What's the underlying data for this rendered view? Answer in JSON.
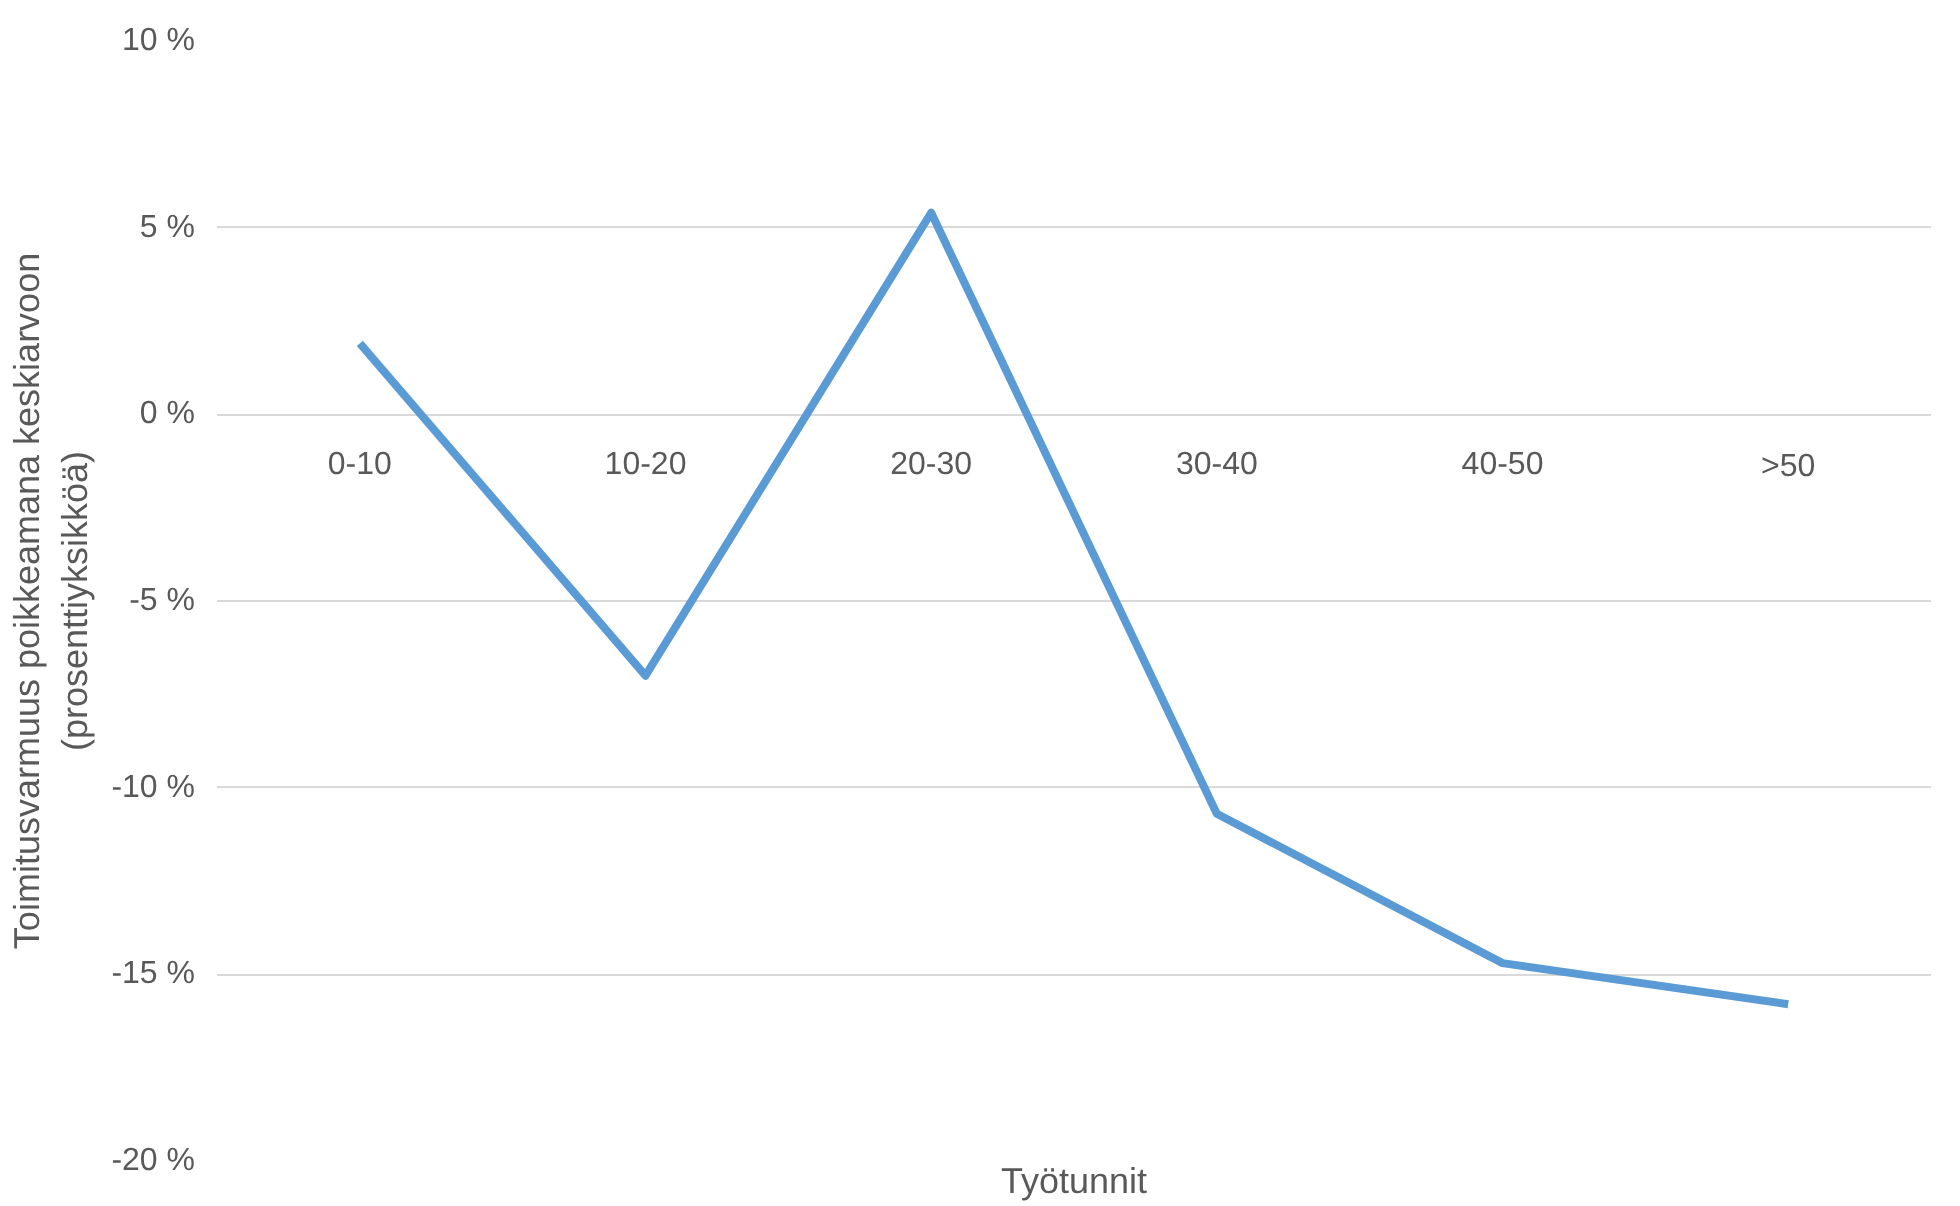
{
  "chart_data": {
    "type": "line",
    "xlabel": "Työtunnit",
    "ylabel": "Toimitusvarmuus poikkeamana keskiarvoon\n(prosenttiyksikköä)",
    "categories": [
      "0-10",
      "10-20",
      "20-30",
      "30-40",
      "40-50",
      ">50"
    ],
    "series": [
      {
        "color": "#5b9bd5",
        "values": [
          1.9,
          -7.0,
          5.4,
          -10.7,
          -14.7,
          -15.8
        ]
      }
    ],
    "ylim": [
      -20,
      10
    ],
    "yticks": [
      {
        "value": -20,
        "label": "-20 %"
      },
      {
        "value": -15,
        "label": "-15 %"
      },
      {
        "value": -10,
        "label": "-10 %"
      },
      {
        "value": -5,
        "label": "-5 %"
      },
      {
        "value": 0,
        "label": "0 %"
      },
      {
        "value": 5,
        "label": "5 %"
      },
      {
        "value": 10,
        "label": "10 %"
      }
    ],
    "grid": "y",
    "marker": "none",
    "line_style": "solid"
  }
}
